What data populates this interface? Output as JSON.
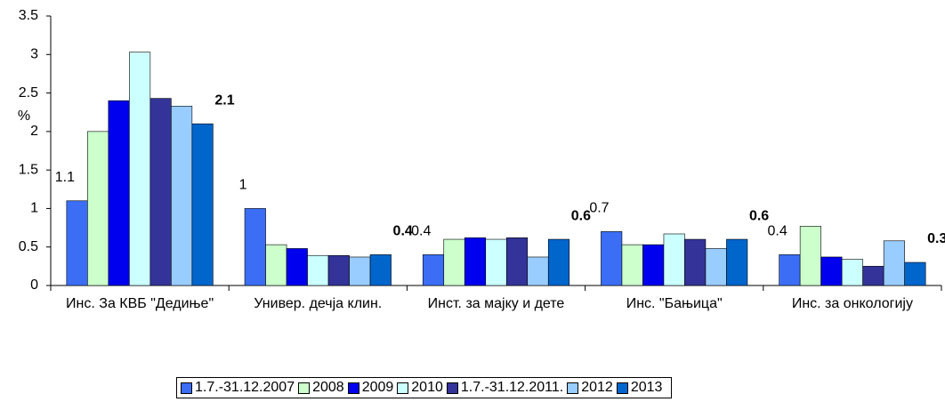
{
  "chart_data": {
    "type": "bar",
    "y_label": "%",
    "categories": [
      "Инс. За КВБ \"Дедиње\"",
      "Универ. дечја клин.",
      "Инст. за мајку и дете",
      "Инс. \"Бањица\"",
      "Инс. за онкологију"
    ],
    "series": [
      {
        "name": "1.7.-31.12.2007",
        "color": "#3b6ef5",
        "values": [
          1.1,
          1.0,
          0.4,
          0.7,
          0.4
        ],
        "value_labels": [
          "1.1",
          "1",
          "0.4",
          "0.7",
          "0.4"
        ]
      },
      {
        "name": "2008",
        "color": "#ccffcc",
        "values": [
          2.0,
          0.53,
          0.6,
          0.53,
          0.77
        ]
      },
      {
        "name": "2009",
        "color": "#0000ee",
        "values": [
          2.4,
          0.48,
          0.62,
          0.53,
          0.37
        ]
      },
      {
        "name": "2010",
        "color": "#ccffff",
        "values": [
          3.03,
          0.39,
          0.6,
          0.67,
          0.34
        ]
      },
      {
        "name": "1.7.-31.12.2011.",
        "color": "#333399",
        "values": [
          2.43,
          0.39,
          0.62,
          0.6,
          0.25
        ]
      },
      {
        "name": "2012",
        "color": "#99ccff",
        "values": [
          2.33,
          0.37,
          0.37,
          0.48,
          0.58
        ]
      },
      {
        "name": "2013",
        "color": "#0066cc",
        "values": [
          2.1,
          0.4,
          0.6,
          0.6,
          0.3
        ],
        "value_labels": [
          "2.1",
          "0.4",
          "0.6",
          "0.6",
          "0.3"
        ]
      }
    ],
    "ylim": [
      0,
      3.5
    ],
    "yticks": [
      0,
      0.5,
      1,
      1.5,
      2,
      2.5,
      3,
      3.5
    ]
  }
}
